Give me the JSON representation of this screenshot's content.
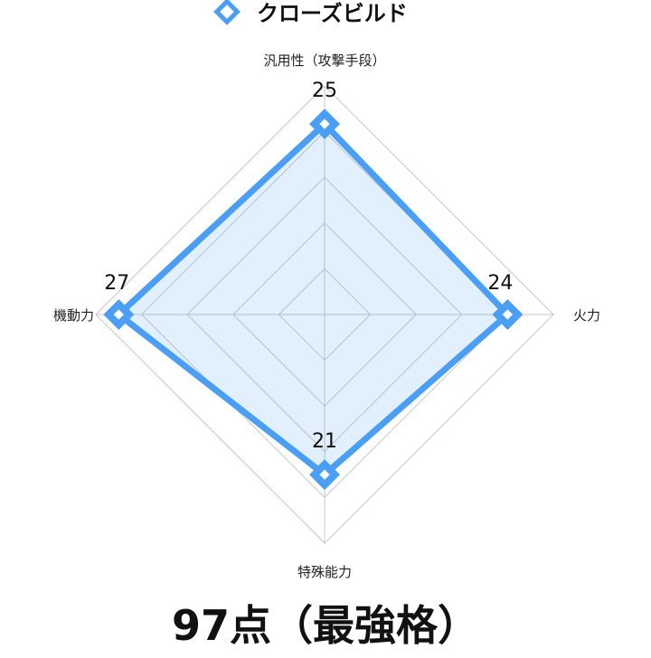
{
  "chart_data": {
    "type": "radar",
    "title": "",
    "categories": [
      "汎用性（攻撃手段）",
      "火力",
      "特殊能力",
      "機動力"
    ],
    "series": [
      {
        "name": "クローズビルド",
        "values": [
          25,
          24,
          21,
          27
        ],
        "color": "#4a9ff5",
        "fill": "rgba(74,159,245,0.16)"
      }
    ],
    "rlim": [
      0,
      30
    ],
    "ticks": [
      6,
      12,
      18,
      24,
      30
    ],
    "grid": true,
    "grid_color": "#c8c8c8",
    "legend_position": "top",
    "data_labels": true,
    "marker": "diamond"
  },
  "summary": {
    "score_text": "97点（最強格）"
  }
}
